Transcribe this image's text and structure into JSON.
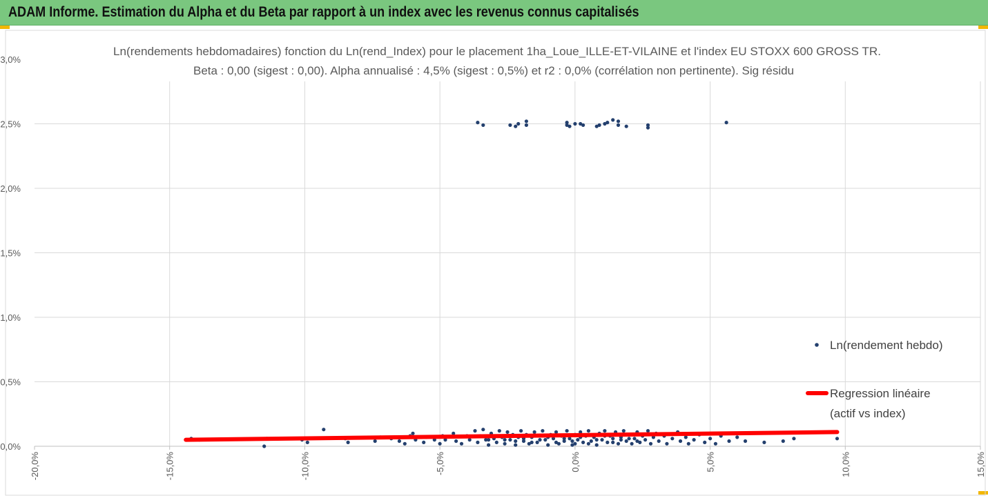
{
  "header": {
    "title": "ADAM Informe. Estimation du Alpha et du Beta par rapport à un index avec les revenus connus capitalisés"
  },
  "colors": {
    "header_bg": "#7ac77f",
    "points": "#24406e",
    "regression": "#ff0000",
    "grid": "#d9d9d9",
    "accent_corner": "#f2b705"
  },
  "chart_data": {
    "type": "scatter",
    "title": "Ln(rendements hebdomadaires) fonction du Ln(rend_Index) pour le placement 1ha_Loue_ILLE-ET-VILAINE  et l'index EU STOXX  600 GROSS TR.",
    "subtitle": "Beta : 0,00 (sigest : 0,00).  Alpha annualisé : 4,5% (sigest : 0,5%) et r2 : 0,0% (corrélation non pertinente). Sig résidu",
    "xlabel": "",
    "ylabel": "",
    "xlim": [
      -20,
      15
    ],
    "ylim": [
      0,
      3
    ],
    "x_ticks": [
      "-20,0%",
      "-15,0%",
      "-10,0%",
      "-5,0%",
      "0,0%",
      "5,0%",
      "10,0%",
      "15,0%"
    ],
    "y_ticks": [
      "0,0%",
      "0,5%",
      "1,0%",
      "1,5%",
      "2,0%",
      "2,5%",
      "3,0%"
    ],
    "grid": "vertical",
    "legend_position": "right",
    "series": [
      {
        "name": "Ln(rendement hebdo)",
        "kind": "scatter",
        "color": "#24406e",
        "points": [
          [
            -3.6,
            2.51
          ],
          [
            -3.4,
            2.49
          ],
          [
            -2.4,
            2.49
          ],
          [
            -2.2,
            2.48
          ],
          [
            -2.1,
            2.5
          ],
          [
            -1.8,
            2.52
          ],
          [
            -1.8,
            2.49
          ],
          [
            -0.3,
            2.51
          ],
          [
            -0.3,
            2.49
          ],
          [
            -0.2,
            2.48
          ],
          [
            0.0,
            2.5
          ],
          [
            0.2,
            2.5
          ],
          [
            0.3,
            2.49
          ],
          [
            0.8,
            2.48
          ],
          [
            0.9,
            2.49
          ],
          [
            1.1,
            2.5
          ],
          [
            1.2,
            2.51
          ],
          [
            1.4,
            2.53
          ],
          [
            1.6,
            2.52
          ],
          [
            1.6,
            2.49
          ],
          [
            1.9,
            2.48
          ],
          [
            2.7,
            2.47
          ],
          [
            2.7,
            2.49
          ],
          [
            5.6,
            2.51
          ],
          [
            -14.4,
            0.05
          ],
          [
            -14.2,
            0.06
          ],
          [
            -13.9,
            0.05
          ],
          [
            -11.5,
            0.0
          ],
          [
            -11.4,
            0.06
          ],
          [
            -10.1,
            0.05
          ],
          [
            -9.9,
            0.03
          ],
          [
            -9.3,
            0.13
          ],
          [
            -8.5,
            0.06
          ],
          [
            -8.4,
            0.03
          ],
          [
            -7.4,
            0.04
          ],
          [
            -7.2,
            0.07
          ],
          [
            -6.8,
            0.06
          ],
          [
            -6.5,
            0.04
          ],
          [
            -6.3,
            0.02
          ],
          [
            -6.1,
            0.08
          ],
          [
            -6.0,
            0.1
          ],
          [
            -5.9,
            0.05
          ],
          [
            -5.6,
            0.03
          ],
          [
            -5.5,
            0.07
          ],
          [
            -5.2,
            0.05
          ],
          [
            -5.0,
            0.02
          ],
          [
            -4.9,
            0.08
          ],
          [
            -4.8,
            0.05
          ],
          [
            -4.5,
            0.1
          ],
          [
            -4.4,
            0.04
          ],
          [
            -4.2,
            0.02
          ],
          [
            -4.0,
            0.08
          ],
          [
            -3.9,
            0.05
          ],
          [
            -3.7,
            0.12
          ],
          [
            -3.6,
            0.03
          ],
          [
            -3.5,
            0.08
          ],
          [
            -3.4,
            0.13
          ],
          [
            -3.3,
            0.05
          ],
          [
            -3.2,
            0.01
          ],
          [
            -3.1,
            0.1
          ],
          [
            -3.0,
            0.06
          ],
          [
            -2.9,
            0.03
          ],
          [
            -2.8,
            0.12
          ],
          [
            -2.7,
            0.07
          ],
          [
            -2.6,
            0.02
          ],
          [
            -2.5,
            0.11
          ],
          [
            -2.4,
            0.05
          ],
          [
            -2.3,
            0.09
          ],
          [
            -2.2,
            0.01
          ],
          [
            -2.1,
            0.07
          ],
          [
            -2.0,
            0.12
          ],
          [
            -1.9,
            0.04
          ],
          [
            -1.8,
            0.09
          ],
          [
            -1.7,
            0.02
          ],
          [
            -1.6,
            0.07
          ],
          [
            -1.5,
            0.11
          ],
          [
            -1.4,
            0.03
          ],
          [
            -1.3,
            0.08
          ],
          [
            -1.2,
            0.12
          ],
          [
            -1.1,
            0.05
          ],
          [
            -1.0,
            0.01
          ],
          [
            -0.9,
            0.09
          ],
          [
            -0.8,
            0.06
          ],
          [
            -0.7,
            0.11
          ],
          [
            -0.6,
            0.02
          ],
          [
            -0.5,
            0.08
          ],
          [
            -0.4,
            0.04
          ],
          [
            -0.3,
            0.12
          ],
          [
            -0.2,
            0.06
          ],
          [
            -0.1,
            0.01
          ],
          [
            0.0,
            0.09
          ],
          [
            0.1,
            0.05
          ],
          [
            0.2,
            0.11
          ],
          [
            0.3,
            0.03
          ],
          [
            0.4,
            0.08
          ],
          [
            0.5,
            0.12
          ],
          [
            0.6,
            0.04
          ],
          [
            0.7,
            0.07
          ],
          [
            0.8,
            0.01
          ],
          [
            0.9,
            0.1
          ],
          [
            1.0,
            0.05
          ],
          [
            1.1,
            0.12
          ],
          [
            1.2,
            0.03
          ],
          [
            1.3,
            0.08
          ],
          [
            1.4,
            0.06
          ],
          [
            1.5,
            0.11
          ],
          [
            1.6,
            0.02
          ],
          [
            1.7,
            0.07
          ],
          [
            1.8,
            0.12
          ],
          [
            1.9,
            0.04
          ],
          [
            2.0,
            0.09
          ],
          [
            2.1,
            0.02
          ],
          [
            2.2,
            0.06
          ],
          [
            2.3,
            0.11
          ],
          [
            2.4,
            0.03
          ],
          [
            2.5,
            0.08
          ],
          [
            2.6,
            0.05
          ],
          [
            2.7,
            0.12
          ],
          [
            2.8,
            0.02
          ],
          [
            2.9,
            0.07
          ],
          [
            3.0,
            0.1
          ],
          [
            3.1,
            0.04
          ],
          [
            3.3,
            0.08
          ],
          [
            3.4,
            0.02
          ],
          [
            3.6,
            0.06
          ],
          [
            3.8,
            0.11
          ],
          [
            3.9,
            0.04
          ],
          [
            4.1,
            0.07
          ],
          [
            4.2,
            0.02
          ],
          [
            4.4,
            0.05
          ],
          [
            4.6,
            0.09
          ],
          [
            4.8,
            0.03
          ],
          [
            5.0,
            0.06
          ],
          [
            5.2,
            0.02
          ],
          [
            5.4,
            0.08
          ],
          [
            5.7,
            0.04
          ],
          [
            6.0,
            0.07
          ],
          [
            6.3,
            0.04
          ],
          [
            7.0,
            0.03
          ],
          [
            7.7,
            0.04
          ],
          [
            8.1,
            0.06
          ],
          [
            9.7,
            0.06
          ],
          [
            -3.2,
            0.05
          ],
          [
            -2.9,
            0.08
          ],
          [
            -2.6,
            0.05
          ],
          [
            -2.2,
            0.04
          ],
          [
            -1.9,
            0.06
          ],
          [
            -1.6,
            0.03
          ],
          [
            -1.3,
            0.05
          ],
          [
            -1.0,
            0.07
          ],
          [
            -0.7,
            0.03
          ],
          [
            -0.4,
            0.06
          ],
          [
            -0.1,
            0.04
          ],
          [
            0.2,
            0.07
          ],
          [
            0.5,
            0.02
          ],
          [
            0.8,
            0.05
          ],
          [
            1.1,
            0.08
          ],
          [
            1.4,
            0.03
          ],
          [
            1.7,
            0.05
          ],
          [
            2.0,
            0.06
          ],
          [
            2.3,
            0.04
          ],
          [
            0.0,
            0.02
          ]
        ]
      },
      {
        "name": "Regression linéaire (actif vs index)",
        "name_lines": [
          "Regression linéaire",
          "(actif vs index)"
        ],
        "kind": "line",
        "color": "#ff0000",
        "points": [
          [
            -14.4,
            0.05
          ],
          [
            9.7,
            0.11
          ]
        ]
      }
    ]
  }
}
